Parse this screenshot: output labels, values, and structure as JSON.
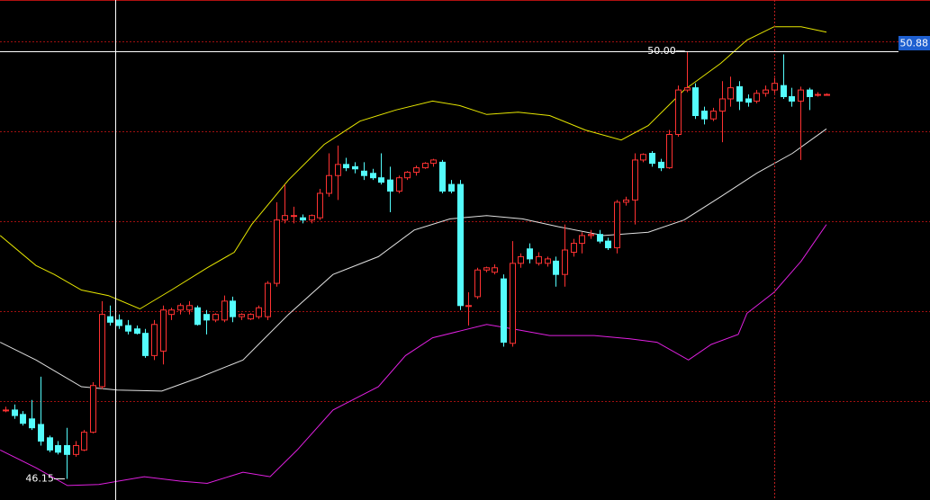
{
  "chart_data": {
    "type": "candlestick",
    "xlim": [
      -0.62,
      105.85
    ],
    "ylim": [
      45.96,
      50.46
    ],
    "up_color": "#ff3232",
    "down_color": "#54fcfc",
    "grid_color": "#a01010",
    "grid_levels": [
      50.09,
      49.28,
      48.47,
      47.66,
      46.85
    ],
    "candles": {
      "open": [
        46.77,
        46.77,
        46.73,
        46.69,
        46.64,
        46.52,
        46.45,
        46.45,
        46.37,
        46.41,
        46.57,
        46.98,
        47.61,
        47.58,
        47.53,
        47.5,
        47.46,
        47.26,
        47.3,
        47.63,
        47.67,
        47.67,
        47.69,
        47.63,
        47.58,
        47.58,
        47.75,
        47.61,
        47.59,
        47.61,
        47.61,
        47.91,
        48.48,
        48.52,
        48.5,
        48.48,
        48.5,
        48.72,
        48.88,
        48.98,
        48.96,
        48.92,
        48.9,
        48.86,
        48.84,
        48.74,
        48.86,
        48.91,
        48.95,
        48.99,
        49.0,
        48.8,
        48.8,
        47.71,
        47.79,
        48.03,
        48.01,
        47.95,
        47.37,
        48.09,
        48.22,
        48.09,
        48.09,
        48.11,
        47.99,
        48.19,
        48.27,
        48.34,
        48.35,
        48.29,
        48.23,
        48.64,
        48.66,
        49.02,
        49.08,
        49.0,
        48.95,
        49.25,
        49.65,
        49.67,
        49.46,
        49.39,
        49.46,
        49.57,
        49.68,
        49.57,
        49.55,
        49.62,
        49.65,
        49.69,
        49.59,
        49.55,
        49.65,
        49.61,
        49.61
      ],
      "close": [
        46.77,
        46.72,
        46.65,
        46.61,
        46.49,
        46.41,
        46.39,
        46.37,
        46.45,
        46.57,
        46.99,
        47.63,
        47.56,
        47.53,
        47.48,
        47.46,
        47.26,
        47.54,
        47.67,
        47.67,
        47.71,
        47.71,
        47.54,
        47.58,
        47.63,
        47.75,
        47.61,
        47.63,
        47.63,
        47.69,
        47.91,
        48.48,
        48.52,
        48.52,
        48.48,
        48.52,
        48.72,
        48.88,
        48.98,
        48.95,
        48.94,
        48.88,
        48.86,
        48.82,
        48.74,
        48.86,
        48.91,
        48.95,
        48.99,
        49.02,
        48.74,
        48.74,
        47.71,
        47.71,
        48.03,
        48.05,
        48.05,
        47.38,
        48.09,
        48.15,
        48.13,
        48.15,
        48.13,
        47.99,
        48.21,
        48.27,
        48.34,
        48.35,
        48.29,
        48.23,
        48.64,
        48.66,
        49.02,
        49.07,
        48.99,
        48.95,
        49.25,
        49.65,
        49.67,
        49.42,
        49.39,
        49.46,
        49.57,
        49.67,
        49.55,
        49.54,
        49.62,
        49.65,
        49.71,
        49.59,
        49.55,
        49.65,
        49.59,
        49.61,
        49.61
      ],
      "high": [
        46.8,
        46.82,
        46.76,
        46.86,
        47.07,
        46.54,
        46.49,
        46.61,
        46.49,
        46.59,
        47.02,
        47.75,
        47.71,
        47.63,
        47.58,
        47.53,
        47.5,
        47.58,
        47.71,
        47.69,
        47.73,
        47.75,
        47.71,
        47.67,
        47.64,
        47.8,
        47.79,
        47.64,
        47.64,
        47.71,
        47.93,
        48.64,
        48.8,
        48.6,
        48.53,
        48.53,
        48.76,
        49.08,
        49.15,
        49.04,
        49.0,
        49.0,
        48.94,
        49.08,
        48.96,
        48.88,
        48.92,
        48.97,
        49.0,
        49.03,
        49.02,
        48.84,
        48.84,
        47.83,
        48.05,
        48.06,
        48.08,
        47.99,
        48.29,
        48.18,
        48.27,
        48.19,
        48.15,
        48.15,
        48.44,
        48.31,
        48.37,
        48.39,
        48.39,
        48.32,
        48.66,
        48.69,
        49.08,
        49.08,
        49.1,
        49.03,
        49.29,
        49.69,
        50.0,
        49.71,
        49.5,
        49.49,
        49.73,
        49.77,
        49.73,
        49.61,
        49.65,
        49.69,
        49.76,
        49.97,
        49.67,
        49.68,
        49.67,
        49.63,
        49.62
      ],
      "low": [
        46.75,
        46.69,
        46.63,
        46.59,
        46.45,
        46.39,
        46.37,
        46.15,
        46.35,
        46.4,
        46.56,
        46.96,
        47.53,
        47.5,
        47.45,
        47.45,
        47.24,
        47.22,
        47.18,
        47.58,
        47.63,
        47.63,
        47.53,
        47.45,
        47.56,
        47.56,
        47.56,
        47.58,
        47.58,
        47.59,
        47.58,
        47.88,
        48.45,
        48.45,
        48.45,
        48.45,
        48.48,
        48.69,
        48.66,
        48.92,
        48.9,
        48.84,
        48.84,
        48.8,
        48.55,
        48.72,
        48.84,
        48.88,
        48.94,
        48.96,
        48.72,
        48.72,
        47.67,
        47.53,
        47.77,
        48.01,
        47.99,
        47.34,
        47.34,
        48.05,
        48.09,
        48.07,
        48.06,
        47.88,
        47.88,
        48.15,
        48.18,
        48.31,
        48.27,
        48.21,
        48.18,
        48.61,
        48.44,
        49.0,
        48.96,
        48.92,
        48.94,
        49.23,
        49.63,
        49.39,
        49.34,
        49.37,
        49.18,
        49.5,
        49.47,
        49.5,
        49.53,
        49.59,
        49.62,
        49.57,
        49.5,
        49.02,
        49.47,
        49.59,
        49.6
      ]
    },
    "bands": [
      {
        "color": "#e6e600",
        "x": [
          -0.6,
          3.5,
          5.6,
          8.7,
          11.8,
          15.4,
          19.0,
          23.1,
          26.2,
          28.2,
          32.4,
          36.5,
          40.6,
          44.7,
          48.9,
          52.0,
          55.1,
          58.7,
          62.3,
          66.4,
          70.5,
          73.6,
          77.7,
          81.9,
          84.9,
          88.0,
          91.1,
          94.0
        ],
        "values": [
          48.34,
          48.07,
          47.99,
          47.85,
          47.8,
          47.68,
          47.85,
          48.05,
          48.19,
          48.44,
          48.84,
          49.16,
          49.37,
          49.47,
          49.55,
          49.51,
          49.43,
          49.45,
          49.42,
          49.29,
          49.2,
          49.33,
          49.65,
          49.89,
          50.1,
          50.22,
          50.22,
          50.17
        ]
      },
      {
        "color": "#e0e0e0",
        "x": [
          -0.6,
          3.5,
          8.7,
          12.8,
          17.9,
          22.1,
          27.2,
          32.4,
          37.5,
          42.7,
          46.8,
          50.9,
          55.1,
          59.2,
          63.3,
          68.5,
          73.6,
          77.7,
          81.9,
          86.0,
          90.1,
          94.0
        ],
        "values": [
          47.38,
          47.22,
          46.98,
          46.95,
          46.94,
          47.06,
          47.22,
          47.63,
          47.99,
          48.15,
          48.39,
          48.49,
          48.52,
          48.49,
          48.42,
          48.34,
          48.37,
          48.48,
          48.69,
          48.9,
          49.08,
          49.3
        ]
      },
      {
        "color": "#e020e0",
        "x": [
          -0.6,
          3.5,
          7.1,
          10.7,
          15.9,
          20.0,
          23.1,
          27.2,
          30.3,
          33.4,
          37.5,
          42.7,
          45.8,
          48.9,
          52.0,
          55.1,
          58.1,
          62.3,
          67.4,
          71.5,
          74.6,
          78.2,
          80.8,
          83.9,
          84.9,
          88.0,
          91.1,
          94.0
        ],
        "values": [
          46.41,
          46.25,
          46.09,
          46.1,
          46.17,
          46.13,
          46.11,
          46.21,
          46.17,
          46.41,
          46.77,
          46.98,
          47.26,
          47.42,
          47.48,
          47.54,
          47.5,
          47.44,
          47.44,
          47.41,
          47.38,
          47.22,
          47.36,
          47.45,
          47.64,
          47.83,
          48.11,
          48.44
        ]
      }
    ],
    "high_marker": {
      "value": 50,
      "label": "50.00"
    },
    "low_marker": {
      "value": 46.15,
      "label": "46.15"
    },
    "crosshair_label": 50.88
  }
}
